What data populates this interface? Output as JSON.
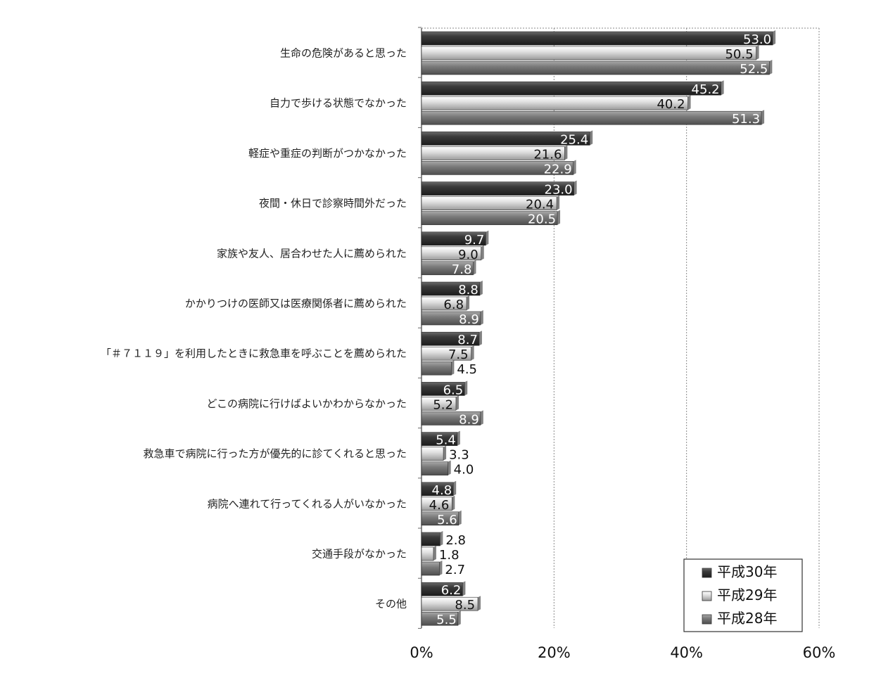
{
  "chart_data": {
    "type": "bar",
    "orientation": "horizontal",
    "categories": [
      "生命の危険があると思った",
      "自力で歩ける状態でなかった",
      "軽症や重症の判断がつかなかった",
      "夜間・休日で診察時間外だった",
      "家族や友人、居合わせた人に薦められた",
      "かかりつけの医師又は医療関係者に薦められた",
      "「＃７１１９」を利用したときに救急車を呼ぶことを薦められた",
      "どこの病院に行けばよいかわからなかった",
      "救急車で病院に行った方が優先的に診てくれると思った",
      "病院へ連れて行ってくれる人がいなかった",
      "交通手段がなかった",
      "その他"
    ],
    "series": [
      {
        "name": "平成30年",
        "color": "#3c3c3c",
        "values": [
          53.0,
          45.2,
          25.4,
          23.0,
          9.7,
          8.8,
          8.7,
          6.5,
          5.4,
          4.8,
          2.8,
          6.2
        ],
        "labels": [
          "53.0",
          "45.2",
          "25.4",
          "23.0",
          "9.7",
          "8.8",
          "8.7",
          "6.5",
          "5.4",
          "4.8",
          "2.8",
          "6.2"
        ]
      },
      {
        "name": "平成29年",
        "color": "#c8c8c8",
        "values": [
          50.5,
          40.2,
          21.6,
          20.4,
          9.0,
          6.8,
          7.5,
          5.2,
          3.3,
          4.6,
          1.8,
          8.5
        ],
        "labels": [
          "50.5",
          "40.2",
          "21.6",
          "20.4",
          "9.0",
          "6.8",
          "7.5",
          "5.2",
          "3.3",
          "4.6",
          "1.8",
          "8.5"
        ]
      },
      {
        "name": "平成28年",
        "color": "#7a7a7a",
        "values": [
          52.5,
          51.3,
          22.9,
          20.5,
          7.8,
          8.9,
          4.5,
          8.9,
          4.0,
          5.6,
          2.7,
          5.5
        ],
        "labels": [
          "52.5",
          "51.3",
          "22.9",
          "20.5",
          "7.8",
          "8.9",
          "4.5",
          "8.9",
          "4.0",
          "5.6",
          "2.7",
          "5.5"
        ]
      }
    ],
    "x_ticks": [
      {
        "value": 0,
        "label": "0%"
      },
      {
        "value": 20,
        "label": "20%"
      },
      {
        "value": 40,
        "label": "40%"
      },
      {
        "value": 60,
        "label": "60%"
      }
    ],
    "xlim": [
      0,
      60
    ],
    "grid": "vertical dotted",
    "legend_position": "bottom-right"
  }
}
